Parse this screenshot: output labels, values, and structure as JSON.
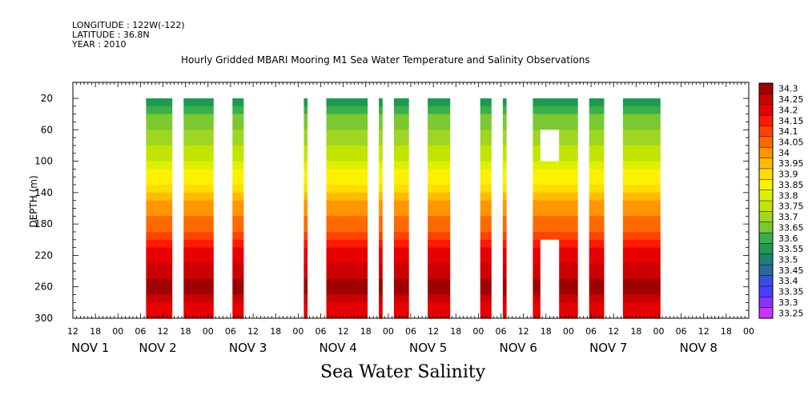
{
  "header": {
    "longitude": "LONGITUDE : 122W(-122)",
    "latitude": "LATITUDE : 36.8N",
    "year": "YEAR : 2010"
  },
  "plot_title": "Hourly Gridded MBARI Mooring M1 Sea Water Temperature and Salinity Observations",
  "variable_title": "Sea Water Salinity",
  "chart_data": {
    "type": "heatmap",
    "title": "Hourly Gridded MBARI Mooring M1 Sea Water Temperature and Salinity Observations",
    "subtitle": "Sea Water Salinity",
    "ylabel": "DEPTH (m)",
    "y_reversed": true,
    "ylim": [
      300,
      20
    ],
    "y_ticks": [
      20,
      60,
      100,
      140,
      180,
      220,
      260,
      300
    ],
    "x_unit": "hours since Nov 1 00:00",
    "xlim": [
      12,
      192
    ],
    "x_ticks": [
      {
        "h": 12,
        "label": "12"
      },
      {
        "h": 18,
        "label": "18"
      },
      {
        "h": 24,
        "label": "00"
      },
      {
        "h": 30,
        "label": "06"
      },
      {
        "h": 36,
        "label": "12"
      },
      {
        "h": 42,
        "label": "18"
      },
      {
        "h": 48,
        "label": "00"
      },
      {
        "h": 54,
        "label": "06"
      },
      {
        "h": 60,
        "label": "12"
      },
      {
        "h": 66,
        "label": "18"
      },
      {
        "h": 72,
        "label": "00"
      },
      {
        "h": 78,
        "label": "06"
      },
      {
        "h": 84,
        "label": "12"
      },
      {
        "h": 90,
        "label": "18"
      },
      {
        "h": 96,
        "label": "00"
      },
      {
        "h": 102,
        "label": "06"
      },
      {
        "h": 108,
        "label": "12"
      },
      {
        "h": 114,
        "label": "18"
      },
      {
        "h": 120,
        "label": "00"
      },
      {
        "h": 126,
        "label": "06"
      },
      {
        "h": 132,
        "label": "12"
      },
      {
        "h": 138,
        "label": "18"
      },
      {
        "h": 144,
        "label": "00"
      },
      {
        "h": 150,
        "label": "06"
      },
      {
        "h": 156,
        "label": "12"
      },
      {
        "h": 162,
        "label": "18"
      },
      {
        "h": 168,
        "label": "00"
      },
      {
        "h": 174,
        "label": "06"
      },
      {
        "h": 180,
        "label": "12"
      },
      {
        "h": 186,
        "label": "18"
      },
      {
        "h": 192,
        "label": "00"
      },
      {
        "h": 198,
        "label": "06"
      },
      {
        "h": 204,
        "label": "12"
      }
    ],
    "day_labels": [
      {
        "h": 12,
        "label": "NOV  1"
      },
      {
        "h": 30,
        "label": "NOV  2"
      },
      {
        "h": 54,
        "label": "NOV  3"
      },
      {
        "h": 78,
        "label": "NOV  4"
      },
      {
        "h": 102,
        "label": "NOV  5"
      },
      {
        "h": 126,
        "label": "NOV  6"
      },
      {
        "h": 150,
        "label": "NOV  7"
      },
      {
        "h": 174,
        "label": "NOV  8"
      }
    ],
    "data_segments": [
      {
        "start": 31.5,
        "end": 38.5
      },
      {
        "start": 41.5,
        "end": 49.5
      },
      {
        "start": 54.5,
        "end": 57.5
      },
      {
        "start": 73.5,
        "end": 74.5
      },
      {
        "start": 79.5,
        "end": 90.5
      },
      {
        "start": 93.5,
        "end": 94.5
      },
      {
        "start": 97.5,
        "end": 101.5
      },
      {
        "start": 106.5,
        "end": 112.5
      },
      {
        "start": 120.5,
        "end": 123.5
      },
      {
        "start": 126.5,
        "end": 127.5
      },
      {
        "start": 134.5,
        "end": 146.5
      },
      {
        "start": 149.5,
        "end": 153.5
      },
      {
        "start": 158.5,
        "end": 168.5
      }
    ],
    "gaps_in_data": [
      {
        "start": 136.5,
        "end": 141.5,
        "depth_top": 60,
        "depth_bottom": 100
      },
      {
        "start": 136.5,
        "end": 141.5,
        "depth_top": 200,
        "depth_bottom": 300
      }
    ],
    "salinity_profile": [
      {
        "depth": 20,
        "value": 33.52
      },
      {
        "depth": 40,
        "value": 33.6
      },
      {
        "depth": 60,
        "value": 33.65
      },
      {
        "depth": 80,
        "value": 33.7
      },
      {
        "depth": 100,
        "value": 33.75
      },
      {
        "depth": 120,
        "value": 33.82
      },
      {
        "depth": 140,
        "value": 33.9
      },
      {
        "depth": 160,
        "value": 33.97
      },
      {
        "depth": 180,
        "value": 34.03
      },
      {
        "depth": 200,
        "value": 34.1
      },
      {
        "depth": 220,
        "value": 34.17
      },
      {
        "depth": 240,
        "value": 34.22
      },
      {
        "depth": 260,
        "value": 34.27
      },
      {
        "depth": 280,
        "value": 34.2
      },
      {
        "depth": 300,
        "value": 34.18
      }
    ],
    "legend": {
      "levels": [
        "34.3",
        "34.25",
        "34.2",
        "34.15",
        "34.1",
        "34.05",
        "34",
        "33.95",
        "33.9",
        "33.85",
        "33.8",
        "33.75",
        "33.7",
        "33.65",
        "33.6",
        "33.55",
        "33.5",
        "33.45",
        "33.4",
        "33.35",
        "33.3",
        "33.25"
      ],
      "colors": [
        "#a00000",
        "#cc0000",
        "#e60000",
        "#ff1a00",
        "#ff4400",
        "#ff6a00",
        "#ff9500",
        "#ffbb00",
        "#ffdd00",
        "#fbf100",
        "#ddf000",
        "#c2e400",
        "#9ed622",
        "#7cc830",
        "#3ab04a",
        "#1c9a52",
        "#208078",
        "#2a6aa0",
        "#3650e0",
        "#4440ff",
        "#8a32ff",
        "#cc33ff"
      ]
    }
  }
}
